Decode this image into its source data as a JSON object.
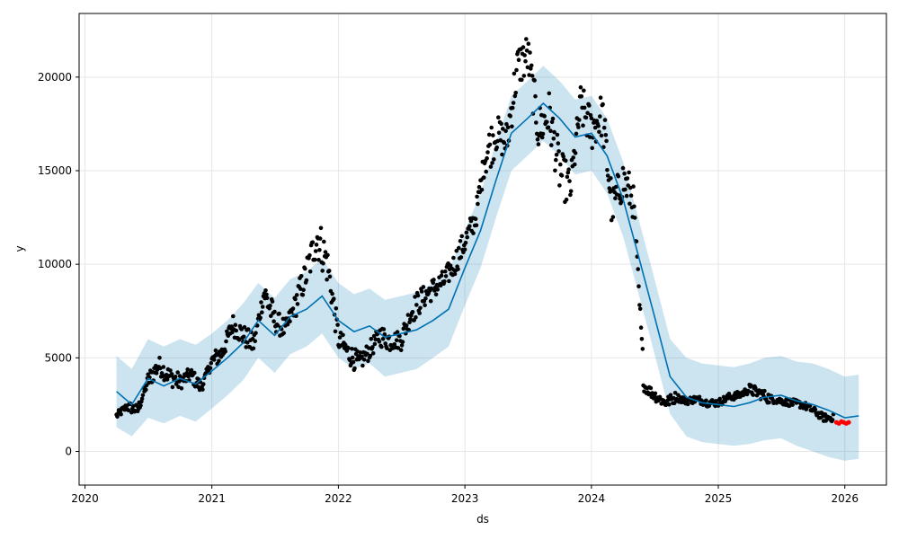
{
  "chart_data": {
    "type": "scatter",
    "title": "",
    "xlabel": "ds",
    "ylabel": "y",
    "xlim": [
      "2019-12-15",
      "2026-05-01"
    ],
    "ylim": [
      -1800,
      23400
    ],
    "grid": true,
    "x_ticks": [
      "2020",
      "2021",
      "2022",
      "2023",
      "2024",
      "2025",
      "2026"
    ],
    "y_ticks": [
      0,
      5000,
      10000,
      15000,
      20000
    ],
    "colors": {
      "observed": "#000000",
      "forecast_line": "#0072B2",
      "interval_fill": "#0072B2",
      "highlight": "#ff0000"
    },
    "forecast": {
      "x": [
        "2020-04-01",
        "2020-05-15",
        "2020-07-01",
        "2020-08-15",
        "2020-10-01",
        "2020-11-15",
        "2021-01-01",
        "2021-02-15",
        "2021-04-01",
        "2021-05-15",
        "2021-07-01",
        "2021-08-15",
        "2021-10-01",
        "2021-11-15",
        "2022-01-01",
        "2022-02-15",
        "2022-04-01",
        "2022-05-15",
        "2022-07-01",
        "2022-08-15",
        "2022-10-01",
        "2022-11-15",
        "2023-01-01",
        "2023-02-15",
        "2023-04-01",
        "2023-05-15",
        "2023-07-01",
        "2023-08-15",
        "2023-10-01",
        "2023-11-15",
        "2024-01-01",
        "2024-02-15",
        "2024-04-01",
        "2024-05-15",
        "2024-07-01",
        "2024-08-15",
        "2024-10-01",
        "2024-11-15",
        "2025-01-01",
        "2025-02-15",
        "2025-04-01",
        "2025-05-15",
        "2025-07-01",
        "2025-08-15",
        "2025-10-01",
        "2025-11-15",
        "2026-01-01",
        "2026-02-10"
      ],
      "yhat": [
        3200,
        2500,
        3900,
        3500,
        3900,
        3600,
        4300,
        5000,
        5800,
        7000,
        6200,
        7200,
        7600,
        8300,
        7000,
        6400,
        6700,
        6100,
        6300,
        6500,
        7000,
        7600,
        9800,
        11800,
        14500,
        17000,
        17800,
        18600,
        17800,
        16800,
        17000,
        15800,
        13500,
        10500,
        7200,
        4000,
        2900,
        2600,
        2500,
        2400,
        2600,
        2900,
        3000,
        2700,
        2500,
        2200,
        1800,
        1900
      ],
      "yhat_lower": [
        1300,
        800,
        1800,
        1500,
        1900,
        1600,
        2300,
        3000,
        3800,
        5000,
        4200,
        5200,
        5600,
        6300,
        5000,
        4400,
        4700,
        4000,
        4200,
        4400,
        5000,
        5600,
        7800,
        9800,
        12500,
        15000,
        15800,
        16600,
        15800,
        14800,
        15000,
        13800,
        11500,
        8500,
        5200,
        2000,
        800,
        500,
        400,
        300,
        400,
        600,
        700,
        300,
        0,
        -300,
        -500,
        -400
      ],
      "yhat_upper": [
        5100,
        4400,
        6000,
        5600,
        6000,
        5700,
        6300,
        7000,
        7900,
        9000,
        8200,
        9200,
        9600,
        10300,
        9000,
        8400,
        8700,
        8100,
        8300,
        8500,
        9000,
        9600,
        11800,
        13800,
        16500,
        19000,
        19800,
        20600,
        19800,
        18800,
        19000,
        17800,
        15500,
        12500,
        9200,
        6000,
        5000,
        4700,
        4600,
        4500,
        4700,
        5000,
        5100,
        4800,
        4700,
        4400,
        4000,
        4100
      ]
    },
    "observed": {
      "x": [
        "2020-04-01",
        "2020-05-01",
        "2020-06-01",
        "2020-07-01",
        "2020-08-01",
        "2020-09-01",
        "2020-10-01",
        "2020-11-01",
        "2020-12-01",
        "2021-01-01",
        "2021-02-01",
        "2021-03-01",
        "2021-04-01",
        "2021-05-01",
        "2021-06-01",
        "2021-07-01",
        "2021-08-01",
        "2021-09-01",
        "2021-10-01",
        "2021-11-01",
        "2021-12-01",
        "2022-01-01",
        "2022-02-01",
        "2022-03-01",
        "2022-04-01",
        "2022-05-01",
        "2022-06-01",
        "2022-07-01",
        "2022-08-01",
        "2022-09-01",
        "2022-10-01",
        "2022-11-01",
        "2022-12-01",
        "2023-01-01",
        "2023-02-01",
        "2023-03-01",
        "2023-04-01",
        "2023-05-01",
        "2023-06-01",
        "2023-07-01",
        "2023-08-01",
        "2023-09-01",
        "2023-10-01",
        "2023-11-01",
        "2023-12-01",
        "2024-01-01",
        "2024-02-01",
        "2024-03-01",
        "2024-04-01",
        "2024-05-01",
        "2024-06-01",
        "2024-07-01",
        "2024-08-01",
        "2024-09-01",
        "2024-10-01",
        "2024-11-01",
        "2024-12-01",
        "2025-01-01",
        "2025-02-01",
        "2025-03-01",
        "2025-04-01",
        "2025-05-01",
        "2025-06-01",
        "2025-07-01",
        "2025-08-01",
        "2025-09-01",
        "2025-10-01",
        "2025-11-01"
      ],
      "y": [
        1900,
        2400,
        2200,
        3800,
        4600,
        4000,
        3700,
        4100,
        3400,
        4800,
        5300,
        6800,
        6200,
        5700,
        8500,
        7000,
        6500,
        8000,
        9500,
        11500,
        10000,
        6000,
        5200,
        4700,
        5400,
        6200,
        5900,
        6000,
        7500,
        8200,
        8700,
        9100,
        10000,
        11200,
        12500,
        15800,
        17000,
        16500,
        20500,
        21200,
        17200,
        18000,
        15000,
        14000,
        18500,
        17200,
        18000,
        13000,
        14500,
        13500,
        3500,
        3000,
        2600,
        2900,
        2700,
        2800,
        2600,
        2600,
        2900,
        3000,
        3300,
        3100,
        2800,
        2700,
        2600,
        2500,
        2200,
        1800
      ],
      "spread": [
        200,
        300,
        300,
        500,
        500,
        500,
        400,
        400,
        300,
        500,
        500,
        600,
        600,
        500,
        800,
        600,
        500,
        800,
        1000,
        1200,
        800,
        600,
        600,
        500,
        500,
        600,
        500,
        600,
        700,
        600,
        600,
        600,
        700,
        700,
        700,
        1200,
        1000,
        1200,
        1200,
        1200,
        1300,
        1300,
        1200,
        1000,
        1200,
        1200,
        1300,
        1100,
        1100,
        700,
        300,
        300,
        300,
        200,
        200,
        200,
        200,
        200,
        200,
        200,
        300,
        300,
        200,
        200,
        200,
        200,
        200,
        200
      ]
    },
    "highlight": {
      "x": [
        "2025-12-08",
        "2025-12-15",
        "2025-12-22",
        "2025-12-29",
        "2026-01-05",
        "2026-01-12"
      ],
      "y": [
        1550,
        1500,
        1600,
        1550,
        1500,
        1550
      ]
    }
  }
}
